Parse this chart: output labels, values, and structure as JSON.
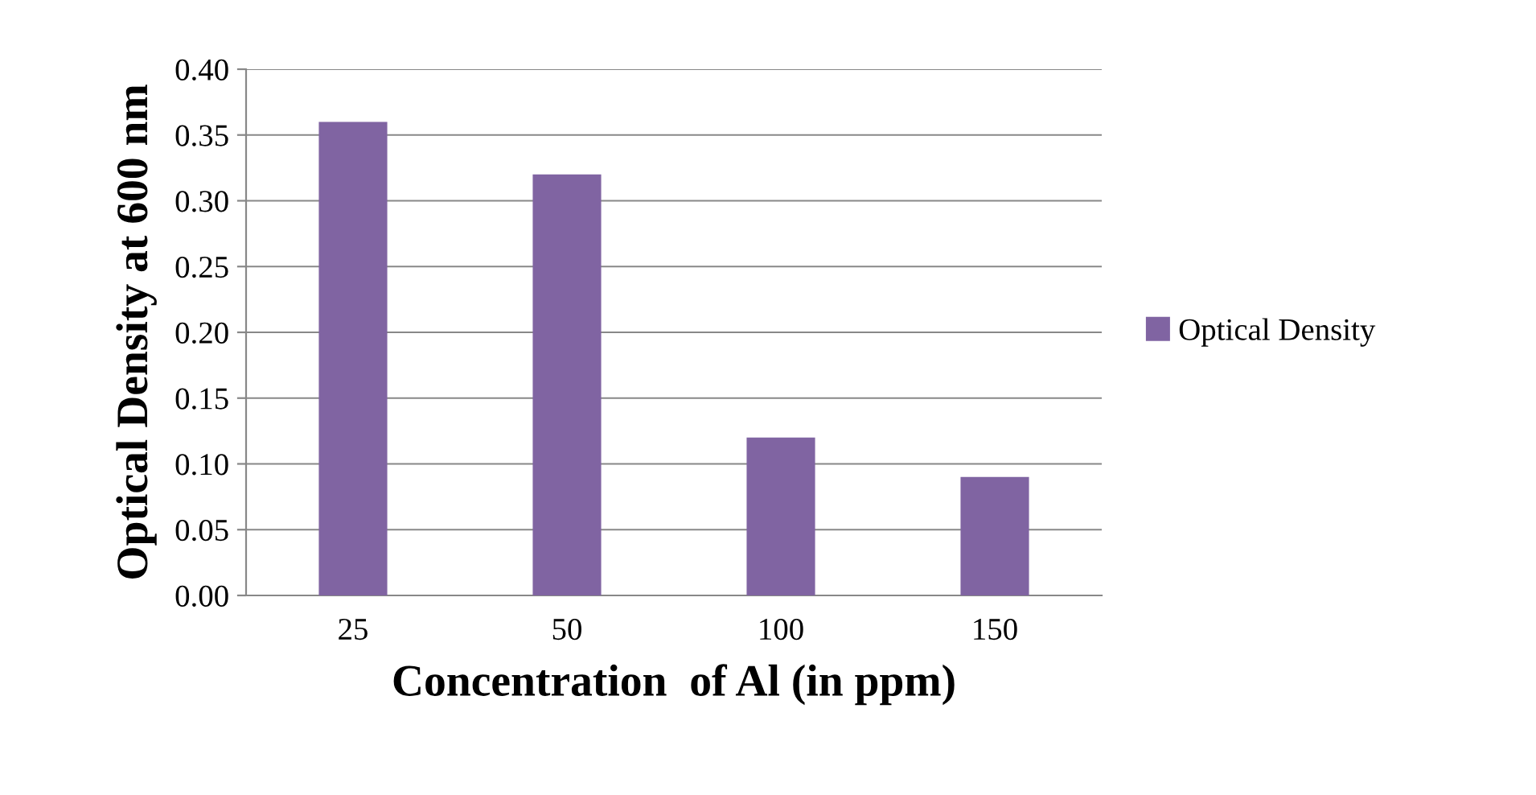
{
  "chart_data": {
    "type": "bar",
    "xlabel": "Concentration  of Al (in ppm)",
    "ylabel": "Optical Density at 600 nm",
    "categories": [
      "25",
      "50",
      "100",
      "150"
    ],
    "series": [
      {
        "name": "Optical Density",
        "color": "#8064a2",
        "values": [
          0.36,
          0.32,
          0.12,
          0.09
        ]
      }
    ],
    "ylim": [
      0,
      0.4
    ],
    "yticks": [
      {
        "value": 0,
        "label": "0.00"
      },
      {
        "value": 0.05,
        "label": "0.05"
      },
      {
        "value": 0.1,
        "label": "0.10"
      },
      {
        "value": 0.15,
        "label": "0.15"
      },
      {
        "value": 0.2,
        "label": "0.20"
      },
      {
        "value": 0.25,
        "label": "0.25"
      },
      {
        "value": 0.3,
        "label": "0.30"
      },
      {
        "value": 0.35,
        "label": "0.35"
      },
      {
        "value": 0.4,
        "label": "0.40"
      }
    ],
    "grid": "y",
    "legend": "right"
  }
}
